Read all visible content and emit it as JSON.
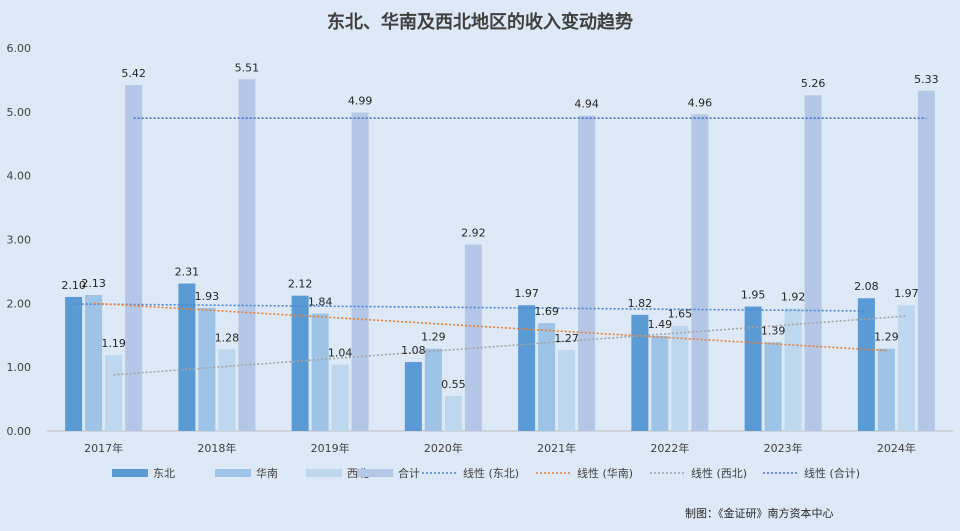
{
  "chart_data": {
    "type": "bar",
    "title": "东北、华南及西北地区的收入变动趋势",
    "categories": [
      "2017年",
      "2018年",
      "2019年",
      "2020年",
      "2021年",
      "2022年",
      "2023年",
      "2024年"
    ],
    "ylim": [
      0,
      6
    ],
    "yticks": [
      "0.00",
      "1.00",
      "2.00",
      "3.00",
      "4.00",
      "5.00",
      "6.00"
    ],
    "grid": false,
    "legend_position": "bottom",
    "series": [
      {
        "name": "东北",
        "color": "#5b9bd5",
        "values": [
          2.1,
          2.31,
          2.12,
          1.08,
          1.97,
          1.82,
          1.95,
          2.08
        ],
        "labels": [
          "2.10",
          "2.31",
          "2.12",
          "1.08",
          "1.97",
          "1.82",
          "1.95",
          "2.08"
        ]
      },
      {
        "name": "华南",
        "color": "#9dc3e6",
        "values": [
          2.13,
          1.93,
          1.84,
          1.29,
          1.69,
          1.49,
          1.39,
          1.29
        ],
        "labels": [
          "2.13",
          "1.93",
          "1.84",
          "1.29",
          "1.69",
          "1.49",
          "1.39",
          "1.29"
        ]
      },
      {
        "name": "西北",
        "color": "#bdd7ee",
        "values": [
          1.19,
          1.28,
          1.04,
          0.55,
          1.27,
          1.65,
          1.92,
          1.97
        ],
        "labels": [
          "1.19",
          "1.28",
          "1.04",
          "0.55",
          "1.27",
          "1.65",
          "1.92",
          "1.97"
        ]
      },
      {
        "name": "合计",
        "color": "#b4c7e7",
        "values": [
          5.42,
          5.51,
          4.99,
          2.92,
          4.94,
          4.96,
          5.26,
          5.33
        ],
        "labels": [
          "5.42",
          "5.51",
          "4.99",
          "2.92",
          "4.94",
          "4.96",
          "5.26",
          "5.33"
        ]
      }
    ],
    "trendlines": [
      {
        "name": "线性 (东北)",
        "series": "东北",
        "color": "#4a86d0",
        "start": 1.99,
        "end": 1.88
      },
      {
        "name": "线性 (华南)",
        "series": "华南",
        "color": "#ed7d31",
        "start": 2.0,
        "end": 1.26
      },
      {
        "name": "线性 (西北)",
        "series": "西北",
        "color": "#a5a5a5",
        "start": 0.88,
        "end": 1.8
      },
      {
        "name": "线性 (合计)",
        "series": "合计",
        "color": "#4472c4",
        "start": 4.9,
        "end": 4.9
      }
    ]
  },
  "credit": "制图：《金证研》南方资本中心"
}
